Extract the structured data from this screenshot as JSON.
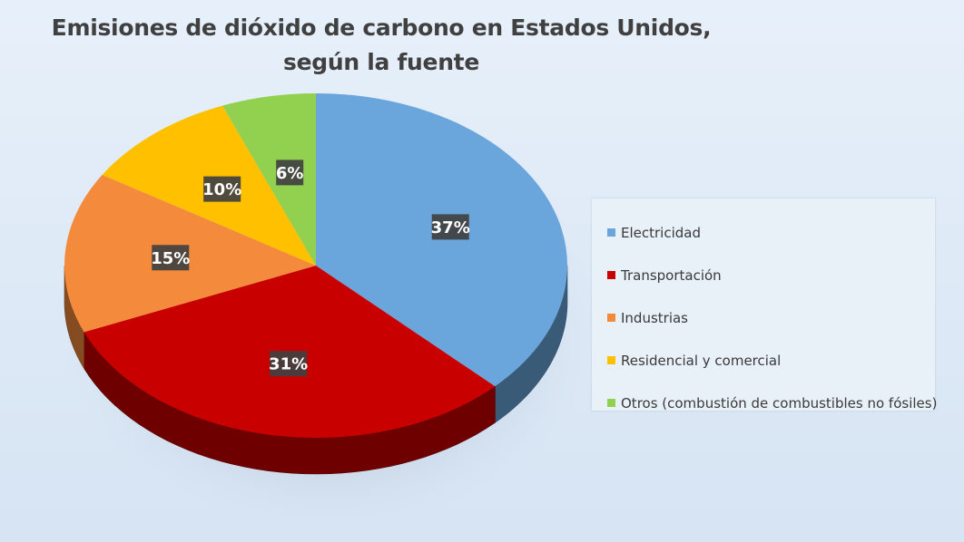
{
  "chart_data": {
    "type": "pie",
    "title_lines": [
      "Emisiones de dióxido de carbono en Estados Unidos,",
      "según la fuente"
    ],
    "categories": [
      "Electricidad",
      "Transportación",
      "Industrias",
      "Residencial y comercial",
      "Otros (combustión de combustibles no fósiles)"
    ],
    "values": [
      37,
      31,
      15,
      10,
      6
    ],
    "data_labels": [
      "37%",
      "31%",
      "15%",
      "10%",
      "6%"
    ],
    "colors": [
      "#6aa5db",
      "#c80000",
      "#f48a3c",
      "#ffc000",
      "#92d050"
    ],
    "legend_position": "right",
    "style": "3d-pie"
  }
}
